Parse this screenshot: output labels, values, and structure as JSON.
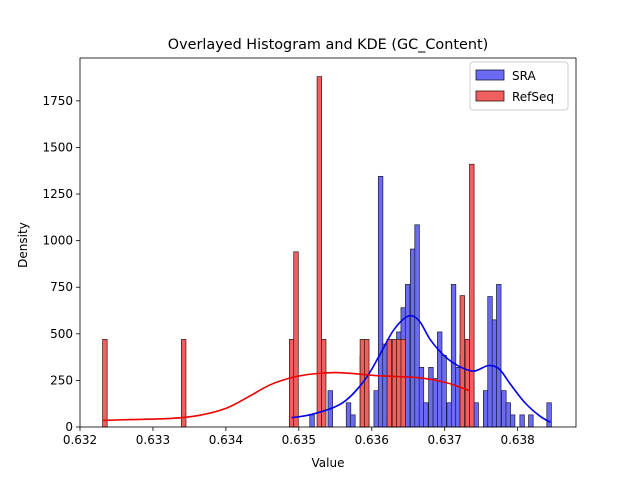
{
  "chart_data": {
    "type": "bar",
    "title": "Overlayed Histogram and KDE (GC_Content)",
    "xlabel": "Value",
    "ylabel": "Density",
    "xlim": [
      0.632,
      0.6388
    ],
    "ylim": [
      0,
      1980
    ],
    "x_ticks": [
      0.632,
      0.633,
      0.634,
      0.635,
      0.636,
      0.637,
      0.638
    ],
    "x_tick_labels": [
      "0.632",
      "0.633",
      "0.634",
      "0.635",
      "0.636",
      "0.637",
      "0.638"
    ],
    "y_ticks": [
      0,
      250,
      500,
      750,
      1000,
      1250,
      1500,
      1750
    ],
    "y_tick_labels": [
      "0",
      "250",
      "500",
      "750",
      "1000",
      "1250",
      "1500",
      "1750"
    ],
    "legend_position": "top-right",
    "series": [
      {
        "name": "SRA",
        "kind": "histogram",
        "color": "#6a6af2",
        "edge_color": "#1a1a3a",
        "bin_width": 6.25e-05,
        "bins": [
          [
            0.6349,
            65
          ],
          [
            0.63515,
            65
          ],
          [
            0.6354,
            195
          ],
          [
            0.63565,
            130
          ],
          [
            0.63571,
            65
          ],
          [
            0.63584,
            380
          ],
          [
            0.6359,
            195
          ],
          [
            0.63603,
            195
          ],
          [
            0.63609,
            1345
          ],
          [
            0.63615,
            445
          ],
          [
            0.63621,
            65
          ],
          [
            0.63628,
            380
          ],
          [
            0.63634,
            510
          ],
          [
            0.6364,
            640
          ],
          [
            0.63646,
            765
          ],
          [
            0.63653,
            955
          ],
          [
            0.63659,
            1085
          ],
          [
            0.63665,
            320
          ],
          [
            0.63671,
            130
          ],
          [
            0.63678,
            320
          ],
          [
            0.63684,
            260
          ],
          [
            0.6369,
            510
          ],
          [
            0.63696,
            385
          ],
          [
            0.63703,
            130
          ],
          [
            0.63709,
            765
          ],
          [
            0.63715,
            320
          ],
          [
            0.63721,
            385
          ],
          [
            0.63728,
            320
          ],
          [
            0.63734,
            255
          ],
          [
            0.6374,
            130
          ],
          [
            0.63753,
            195
          ],
          [
            0.63759,
            700
          ],
          [
            0.63765,
            575
          ],
          [
            0.63771,
            765
          ],
          [
            0.63778,
            195
          ],
          [
            0.63784,
            130
          ],
          [
            0.6379,
            65
          ],
          [
            0.63803,
            65
          ],
          [
            0.63815,
            65
          ],
          [
            0.6384,
            130
          ]
        ],
        "kde": [
          [
            0.6349,
            50
          ],
          [
            0.6352,
            70
          ],
          [
            0.6356,
            130
          ],
          [
            0.6359,
            250
          ],
          [
            0.6361,
            380
          ],
          [
            0.6363,
            520
          ],
          [
            0.6365,
            595
          ],
          [
            0.63665,
            570
          ],
          [
            0.6368,
            470
          ],
          [
            0.637,
            380
          ],
          [
            0.6372,
            325
          ],
          [
            0.6374,
            300
          ],
          [
            0.6376,
            330
          ],
          [
            0.63775,
            310
          ],
          [
            0.6379,
            230
          ],
          [
            0.6381,
            130
          ],
          [
            0.6383,
            60
          ],
          [
            0.63845,
            25
          ]
        ]
      },
      {
        "name": "RefSeq",
        "kind": "histogram",
        "color": "#f25f5f",
        "edge_color": "#3a1010",
        "bin_width": 6.25e-05,
        "bins": [
          [
            0.63231,
            470
          ],
          [
            0.63339,
            470
          ],
          [
            0.63487,
            470
          ],
          [
            0.63493,
            940
          ],
          [
            0.63525,
            1880
          ],
          [
            0.63531,
            470
          ],
          [
            0.63584,
            470
          ],
          [
            0.6359,
            470
          ],
          [
            0.63621,
            470
          ],
          [
            0.63628,
            470
          ],
          [
            0.63634,
            470
          ],
          [
            0.6364,
            470
          ],
          [
            0.63721,
            705
          ],
          [
            0.63728,
            470
          ],
          [
            0.63734,
            1410
          ]
        ],
        "kde": [
          [
            0.63231,
            35
          ],
          [
            0.6327,
            40
          ],
          [
            0.6332,
            45
          ],
          [
            0.6336,
            60
          ],
          [
            0.634,
            100
          ],
          [
            0.6343,
            160
          ],
          [
            0.6346,
            225
          ],
          [
            0.6349,
            265
          ],
          [
            0.6352,
            285
          ],
          [
            0.6355,
            292
          ],
          [
            0.6358,
            285
          ],
          [
            0.6361,
            275
          ],
          [
            0.6364,
            270
          ],
          [
            0.6367,
            262
          ],
          [
            0.637,
            240
          ],
          [
            0.6372,
            215
          ],
          [
            0.63734,
            195
          ]
        ]
      }
    ]
  }
}
